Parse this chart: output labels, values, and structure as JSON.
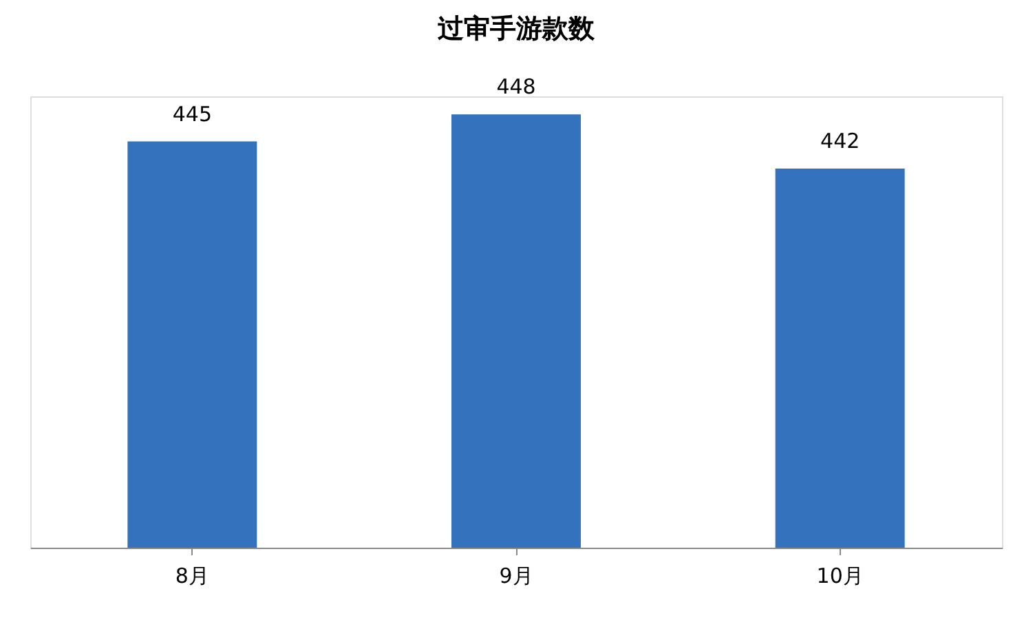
{
  "chart_data": {
    "type": "bar",
    "title": "过审手游款数",
    "categories": [
      "8月",
      "9月",
      "10月"
    ],
    "values": [
      445,
      448,
      442
    ],
    "color": "#3572bd",
    "ylim": [
      400,
      450
    ],
    "data_labels": true,
    "grid": false
  }
}
